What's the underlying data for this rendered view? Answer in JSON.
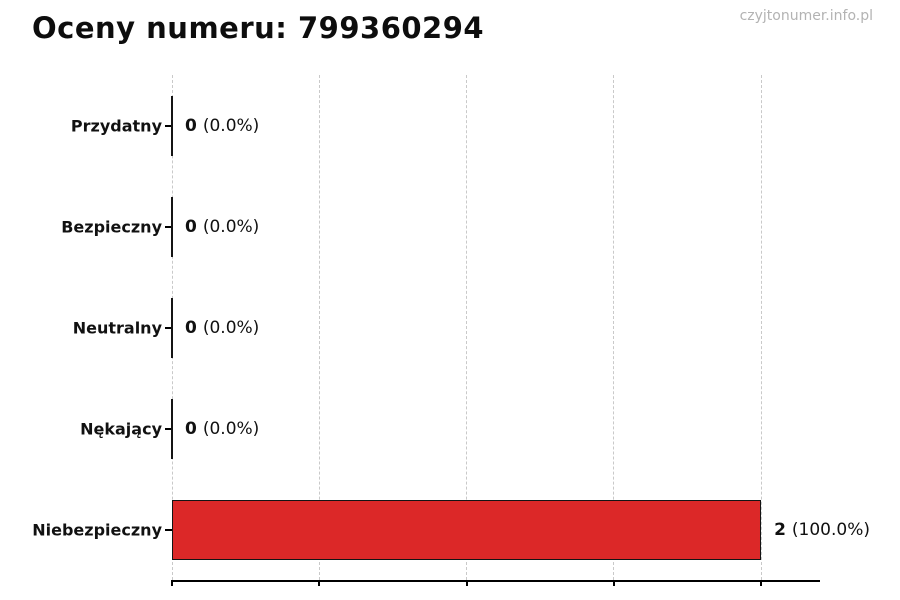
{
  "page": {
    "watermark": "czyjtonumer.info.pl"
  },
  "chart_data": {
    "type": "bar",
    "orientation": "horizontal",
    "title": "Oceny numeru: 799360294",
    "xlabel": "",
    "ylabel": "",
    "categories": [
      "Przydatny",
      "Bezpieczny",
      "Neutralny",
      "Nękający",
      "Niebezpieczny"
    ],
    "values": [
      0,
      0,
      0,
      0,
      2
    ],
    "value_labels": [
      {
        "count": "0",
        "pct": "(0.0%)"
      },
      {
        "count": "0",
        "pct": "(0.0%)"
      },
      {
        "count": "0",
        "pct": "(0.0%)"
      },
      {
        "count": "0",
        "pct": "(0.0%)"
      },
      {
        "count": "2",
        "pct": "(100.0%)"
      }
    ],
    "xlim": [
      0,
      2.2
    ],
    "xticks": [
      0,
      0.5,
      1.0,
      1.5,
      2.0
    ],
    "grid": "vertical-dashed",
    "legend": "none",
    "bar_color": "#dc2828",
    "bar_edge_color": "#141414",
    "grid_color": "#c9c9c9",
    "axis_color": "#000000"
  }
}
